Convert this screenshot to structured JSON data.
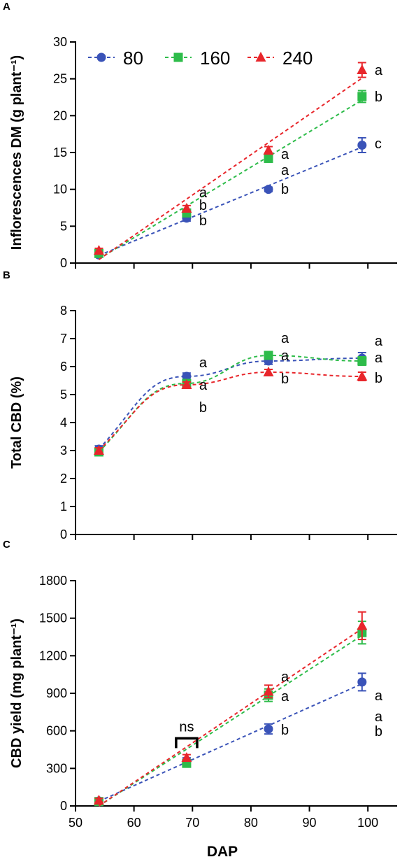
{
  "colors": {
    "80": "#3a53b8",
    "160": "#2ebc4a",
    "240": "#e8262b"
  },
  "legend": {
    "items": [
      "80",
      "160",
      "240"
    ],
    "placement": "top-left (panel A)"
  },
  "chart_data": [
    {
      "panel": "A",
      "type": "line",
      "ylabel": "Inflorescences DM (g plant⁻¹)",
      "xlabel": "",
      "xlim": [
        50,
        105
      ],
      "ylim": [
        0,
        30
      ],
      "xticks": [
        "50",
        "60",
        "70",
        "80",
        "90",
        "100"
      ],
      "yticks": [
        "0",
        "5",
        "10",
        "15",
        "20",
        "25",
        "30"
      ],
      "show_x_ticklabels": false,
      "grid": false,
      "x": [
        54,
        69,
        83,
        99
      ],
      "series": [
        {
          "name": "80",
          "values": [
            1.1,
            6.1,
            10.0,
            16.0
          ],
          "errors": [
            0.3,
            0.4,
            0.3,
            1.0
          ],
          "marker": "circle"
        },
        {
          "name": "160",
          "values": [
            1.3,
            6.8,
            14.2,
            22.6
          ],
          "errors": [
            0.3,
            0.4,
            0.5,
            0.8
          ],
          "marker": "square"
        },
        {
          "name": "240",
          "values": [
            1.7,
            7.4,
            15.3,
            26.2
          ],
          "errors": [
            0.3,
            0.4,
            0.5,
            1.0
          ],
          "marker": "triangle"
        }
      ],
      "trend": "linear",
      "annotations": [
        {
          "x": 69,
          "letters": [
            "a",
            "b",
            "b"
          ]
        },
        {
          "x": 83,
          "letters": [
            "a",
            "a",
            "b"
          ]
        },
        {
          "x": 99,
          "letters": [
            "a",
            "b",
            "c"
          ]
        }
      ]
    },
    {
      "panel": "B",
      "type": "line",
      "ylabel": "Total CBD (%)",
      "xlabel": "",
      "xlim": [
        50,
        105
      ],
      "ylim": [
        0,
        8
      ],
      "xticks": [
        "50",
        "60",
        "70",
        "80",
        "90",
        "100"
      ],
      "yticks": [
        "0",
        "1",
        "2",
        "3",
        "4",
        "5",
        "6",
        "7",
        "8"
      ],
      "show_x_ticklabels": false,
      "grid": false,
      "x": [
        54,
        69,
        83,
        99
      ],
      "series": [
        {
          "name": "80",
          "values": [
            3.05,
            5.65,
            6.2,
            6.3
          ],
          "errors": [
            0.12,
            0.12,
            0.12,
            0.2
          ],
          "marker": "circle"
        },
        {
          "name": "160",
          "values": [
            2.95,
            5.4,
            6.4,
            6.2
          ],
          "errors": [
            0.1,
            0.1,
            0.12,
            0.15
          ],
          "marker": "square"
        },
        {
          "name": "240",
          "values": [
            3.0,
            5.35,
            5.8,
            5.65
          ],
          "errors": [
            0.1,
            0.1,
            0.1,
            0.15
          ],
          "marker": "triangle"
        }
      ],
      "trend": "plateau",
      "annotations": [
        {
          "x": 69,
          "letters": [
            "a",
            "a",
            "b"
          ]
        },
        {
          "x": 83,
          "letters": [
            "a",
            "a",
            "b"
          ]
        },
        {
          "x": 99,
          "letters": [
            "a",
            "a",
            "b"
          ]
        }
      ]
    },
    {
      "panel": "C",
      "type": "line",
      "ylabel": "CBD yield (mg plant⁻¹)",
      "xlabel": "DAP",
      "xlim": [
        50,
        105
      ],
      "ylim": [
        0,
        1800
      ],
      "xticks": [
        "50",
        "60",
        "70",
        "80",
        "90",
        "100"
      ],
      "yticks": [
        "0",
        "300",
        "600",
        "900",
        "1200",
        "1500",
        "1800"
      ],
      "show_x_ticklabels": true,
      "grid": false,
      "x": [
        54,
        69,
        83,
        99
      ],
      "series": [
        {
          "name": "80",
          "values": [
            40,
            360,
            615,
            990
          ],
          "errors": [
            15,
            25,
            40,
            70
          ],
          "marker": "circle"
        },
        {
          "name": "160",
          "values": [
            35,
            340,
            885,
            1385
          ],
          "errors": [
            15,
            20,
            50,
            90
          ],
          "marker": "square"
        },
        {
          "name": "240",
          "values": [
            45,
            385,
            915,
            1440
          ],
          "errors": [
            15,
            25,
            50,
            110
          ],
          "marker": "triangle"
        }
      ],
      "trend": "linear",
      "bracket_label": "ns",
      "annotations": [
        {
          "x": 83,
          "letters": [
            "a",
            "a",
            "b"
          ]
        },
        {
          "x": 99,
          "letters": [
            "a",
            "a",
            "b"
          ]
        }
      ]
    }
  ]
}
